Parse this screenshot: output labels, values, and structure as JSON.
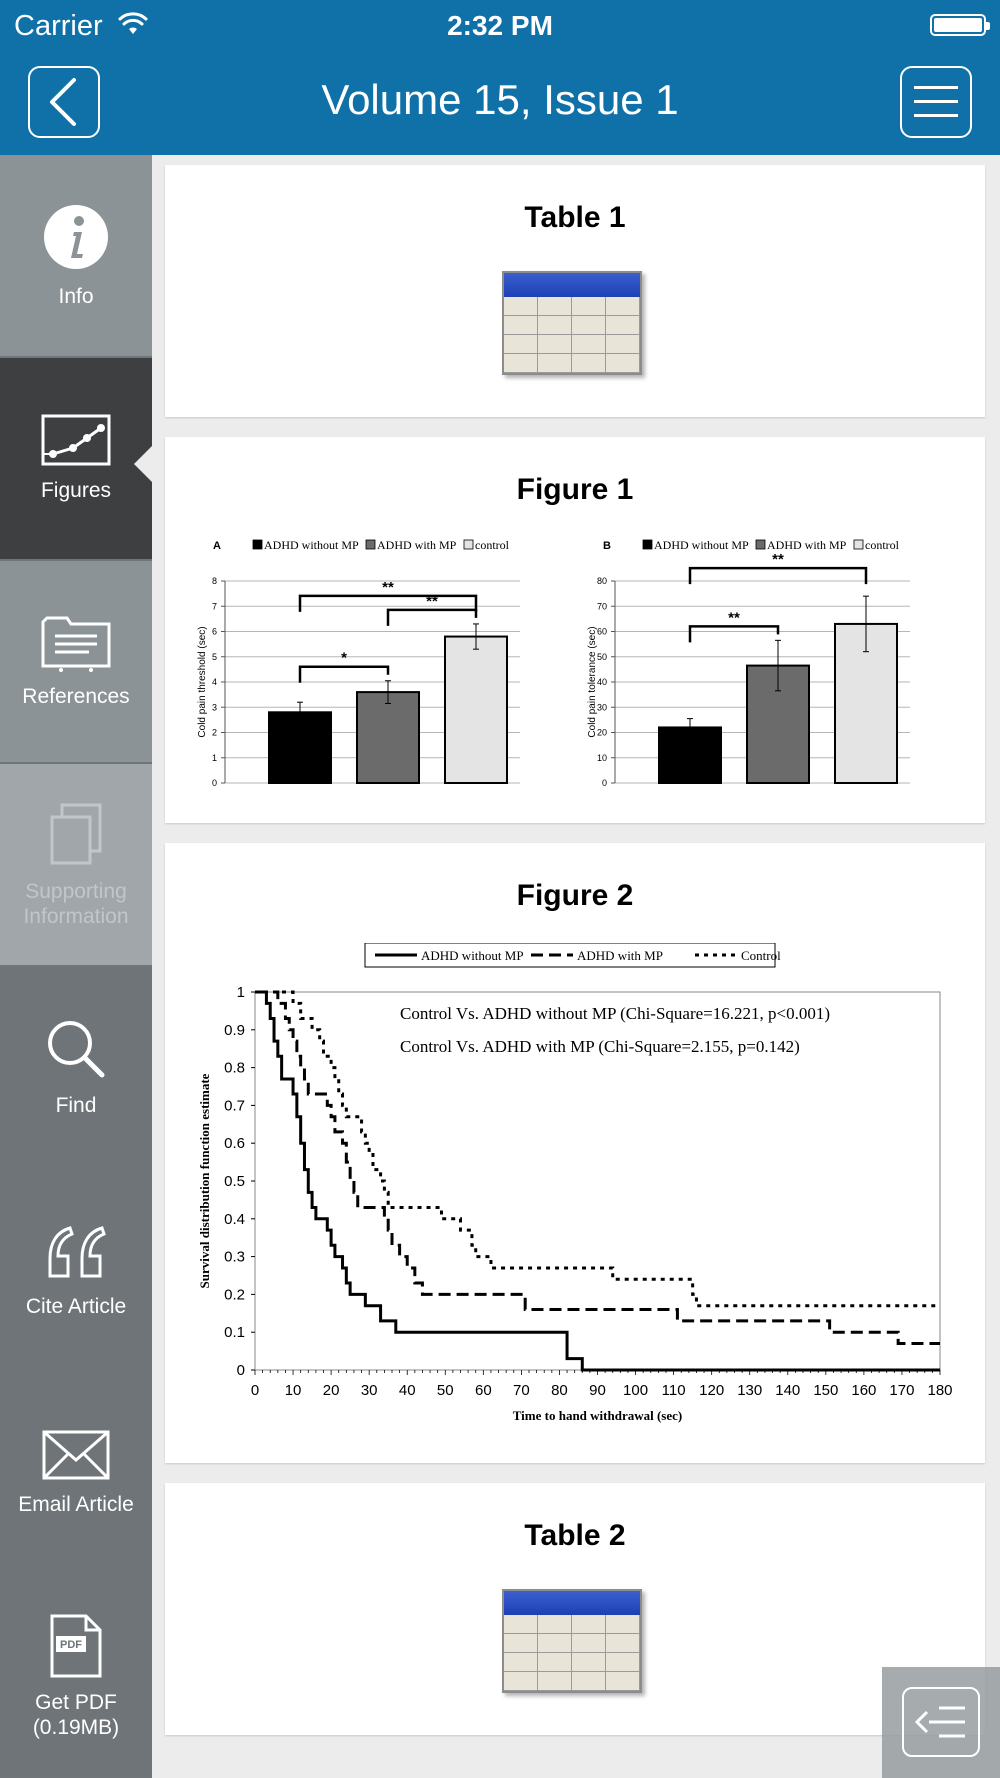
{
  "status": {
    "carrier": "Carrier",
    "time": "2:32 PM"
  },
  "nav": {
    "title": "Volume 15, Issue 1"
  },
  "sidebar": {
    "items": [
      {
        "label": "Info"
      },
      {
        "label": "Figures"
      },
      {
        "label": "References"
      },
      {
        "label": "Supporting Information"
      },
      {
        "label": "Find"
      },
      {
        "label": "Cite Article"
      },
      {
        "label": "Email Article"
      },
      {
        "label": "Get PDF (0.19MB)"
      }
    ],
    "pdf_badge": "PDF"
  },
  "content": {
    "table1_title": "Table 1",
    "figure1_title": "Figure 1",
    "figure2_title": "Figure 2",
    "table2_title": "Table 2"
  },
  "chart_data": [
    {
      "type": "bar",
      "panel": "A",
      "categories": [
        "ADHD without MP",
        "ADHD with MP",
        "control"
      ],
      "values": [
        2.8,
        3.6,
        5.8
      ],
      "errors": [
        0.4,
        0.45,
        0.5
      ],
      "colors": [
        "#000000",
        "#6b6b6b",
        "#e4e4e4"
      ],
      "legend": [
        "ADHD without MP",
        "ADHD with MP",
        "control"
      ],
      "ylabel": "Cold pain threshold  (sec)",
      "ylim": [
        0,
        8
      ],
      "yticks": [
        "0",
        "1",
        "2",
        "3",
        "4",
        "5",
        "6",
        "7",
        "8"
      ],
      "brackets": [
        {
          "from": 0,
          "to": 1,
          "label": "*"
        },
        {
          "from": 1,
          "to": 2,
          "label": "**"
        },
        {
          "from": 0,
          "to": 2,
          "label": "**"
        }
      ]
    },
    {
      "type": "bar",
      "panel": "B",
      "categories": [
        "ADHD without MP",
        "ADHD with MP",
        "control"
      ],
      "values": [
        22,
        46.5,
        63
      ],
      "errors": [
        3.5,
        10,
        11
      ],
      "colors": [
        "#000000",
        "#6b6b6b",
        "#e4e4e4"
      ],
      "legend": [
        "ADHD without MP",
        "ADHD with MP",
        "control"
      ],
      "ylabel": "Cold pain tolerance  (sec)",
      "ylim": [
        0,
        80
      ],
      "yticks": [
        "0",
        "10",
        "20",
        "30",
        "40",
        "50",
        "60",
        "70",
        "80"
      ],
      "brackets": [
        {
          "from": 0,
          "to": 1,
          "label": "**"
        },
        {
          "from": 0,
          "to": 2,
          "label": "**"
        }
      ]
    },
    {
      "type": "line",
      "step": true,
      "xlabel": "Time to hand withdrawal (sec)",
      "ylabel": "Survival distribution function estimate",
      "xlim": [
        0,
        180
      ],
      "ylim": [
        0,
        1
      ],
      "xticks": [
        "0",
        "10",
        "20",
        "30",
        "40",
        "50",
        "60",
        "70",
        "80",
        "90",
        "100",
        "110",
        "120",
        "130",
        "140",
        "150",
        "160",
        "170",
        "180"
      ],
      "yticks": [
        "0",
        "0.1",
        "0.2",
        "0.3",
        "0.4",
        "0.5",
        "0.6",
        "0.7",
        "0.8",
        "0.9",
        "1"
      ],
      "annotations": [
        "Control Vs. ADHD without MP (Chi-Square=16.221, p<0.001)",
        "Control Vs. ADHD with MP (Chi-Square=2.155, p=0.142)"
      ],
      "series": [
        {
          "name": "ADHD without MP",
          "dash": "solid",
          "points": [
            [
              0,
              1
            ],
            [
              2,
              1
            ],
            [
              3,
              0.97
            ],
            [
              4,
              0.93
            ],
            [
              5,
              0.87
            ],
            [
              6,
              0.83
            ],
            [
              7,
              0.77
            ],
            [
              9,
              0.77
            ],
            [
              10,
              0.73
            ],
            [
              11,
              0.67
            ],
            [
              12,
              0.6
            ],
            [
              13,
              0.53
            ],
            [
              14,
              0.47
            ],
            [
              15,
              0.43
            ],
            [
              16,
              0.4
            ],
            [
              18,
              0.4
            ],
            [
              19,
              0.37
            ],
            [
              20,
              0.33
            ],
            [
              21,
              0.3
            ],
            [
              22,
              0.3
            ],
            [
              23,
              0.27
            ],
            [
              24,
              0.23
            ],
            [
              25,
              0.2
            ],
            [
              28,
              0.2
            ],
            [
              29,
              0.17
            ],
            [
              32,
              0.17
            ],
            [
              33,
              0.13
            ],
            [
              36,
              0.13
            ],
            [
              37,
              0.1
            ],
            [
              81,
              0.1
            ],
            [
              82,
              0.03
            ],
            [
              85,
              0.03
            ],
            [
              86,
              0
            ],
            [
              180,
              0
            ]
          ]
        },
        {
          "name": "ADHD with MP",
          "dash": "dashed",
          "points": [
            [
              0,
              1
            ],
            [
              5,
              1
            ],
            [
              6,
              0.97
            ],
            [
              8,
              0.93
            ],
            [
              9,
              0.9
            ],
            [
              10,
              0.87
            ],
            [
              11,
              0.83
            ],
            [
              12,
              0.8
            ],
            [
              13,
              0.77
            ],
            [
              14,
              0.73
            ],
            [
              18,
              0.73
            ],
            [
              19,
              0.7
            ],
            [
              20,
              0.67
            ],
            [
              21,
              0.63
            ],
            [
              23,
              0.6
            ],
            [
              24,
              0.55
            ],
            [
              25,
              0.5
            ],
            [
              26,
              0.47
            ],
            [
              27,
              0.43
            ],
            [
              33,
              0.43
            ],
            [
              34,
              0.4
            ],
            [
              35,
              0.37
            ],
            [
              36,
              0.33
            ],
            [
              38,
              0.3
            ],
            [
              40,
              0.27
            ],
            [
              42,
              0.23
            ],
            [
              44,
              0.2
            ],
            [
              70,
              0.2
            ],
            [
              71,
              0.16
            ],
            [
              110,
              0.16
            ],
            [
              111,
              0.13
            ],
            [
              150,
              0.13
            ],
            [
              151,
              0.1
            ],
            [
              168,
              0.1
            ],
            [
              169,
              0.07
            ],
            [
              180,
              0.07
            ]
          ]
        },
        {
          "name": "Control",
          "dash": "dotted",
          "points": [
            [
              0,
              1
            ],
            [
              9,
              1
            ],
            [
              10,
              0.97
            ],
            [
              12,
              0.93
            ],
            [
              15,
              0.9
            ],
            [
              17,
              0.87
            ],
            [
              18,
              0.83
            ],
            [
              20,
              0.8
            ],
            [
              21,
              0.77
            ],
            [
              22,
              0.73
            ],
            [
              23,
              0.7
            ],
            [
              24,
              0.67
            ],
            [
              27,
              0.67
            ],
            [
              28,
              0.63
            ],
            [
              29,
              0.6
            ],
            [
              30,
              0.57
            ],
            [
              31,
              0.53
            ],
            [
              33,
              0.5
            ],
            [
              34,
              0.47
            ],
            [
              35,
              0.43
            ],
            [
              48,
              0.43
            ],
            [
              49,
              0.4
            ],
            [
              53,
              0.4
            ],
            [
              54,
              0.37
            ],
            [
              57,
              0.33
            ],
            [
              58,
              0.3
            ],
            [
              61,
              0.3
            ],
            [
              62,
              0.27
            ],
            [
              69,
              0.27
            ],
            [
              70,
              0.27
            ],
            [
              93,
              0.27
            ],
            [
              94,
              0.24
            ],
            [
              114,
              0.24
            ],
            [
              115,
              0.2
            ],
            [
              116,
              0.17
            ],
            [
              180,
              0.17
            ]
          ]
        }
      ]
    }
  ]
}
